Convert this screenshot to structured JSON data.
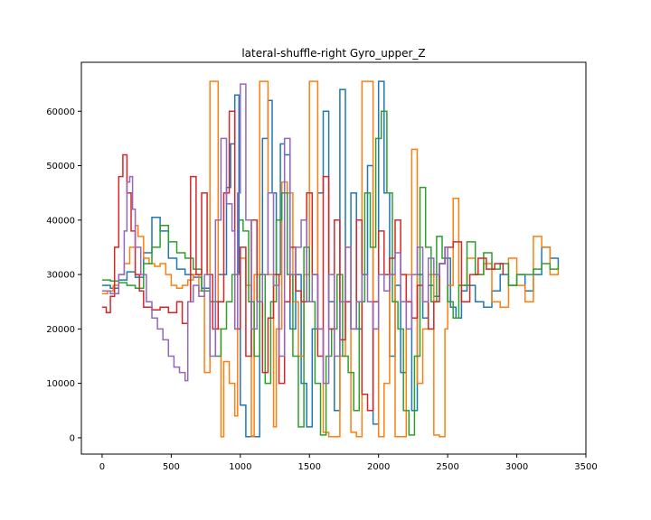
{
  "chart_data": {
    "type": "line",
    "title": "lateral-shuffle-right Gyro_upper_Z",
    "xlabel": "",
    "ylabel": "",
    "xlim": [
      -150,
      3500
    ],
    "ylim": [
      -3000,
      69000
    ],
    "xticks": [
      0,
      500,
      1000,
      1500,
      2000,
      2500,
      3000,
      3500
    ],
    "yticks": [
      0,
      10000,
      20000,
      30000,
      40000,
      50000,
      60000
    ],
    "grid": false,
    "step": true,
    "series": [
      {
        "color": "#1f77b4",
        "x": [
          0,
          60,
          120,
          180,
          240,
          300,
          360,
          420,
          480,
          540,
          600,
          660,
          720,
          780,
          840,
          900,
          930,
          960,
          990,
          1000,
          1040,
          1080,
          1100,
          1140,
          1160,
          1200,
          1230,
          1260,
          1290,
          1320,
          1360,
          1400,
          1440,
          1480,
          1520,
          1560,
          1600,
          1640,
          1680,
          1720,
          1760,
          1800,
          1840,
          1880,
          1920,
          1960,
          2000,
          2040,
          2080,
          2120,
          2160,
          2200,
          2240,
          2280,
          2320,
          2360,
          2400,
          2440,
          2480,
          2520,
          2560,
          2600,
          2640,
          2700,
          2760,
          2820,
          2880,
          2940,
          3000,
          3060,
          3120,
          3180,
          3240,
          3300
        ],
        "y": [
          28000,
          27500,
          29000,
          30500,
          29500,
          34000,
          40500,
          38000,
          33000,
          31000,
          30000,
          29500,
          27500,
          25000,
          30000,
          46000,
          54000,
          63000,
          30000,
          6000,
          200,
          300,
          200,
          30000,
          55000,
          62000,
          45000,
          30000,
          54000,
          52000,
          20000,
          30000,
          10000,
          2000,
          20000,
          45000,
          60000,
          25000,
          5000,
          64000,
          25000,
          45000,
          20000,
          30000,
          50000,
          2500,
          65500,
          45000,
          15000,
          28000,
          12000,
          25000,
          5000,
          30000,
          22000,
          28000,
          26000,
          32000,
          33000,
          24000,
          22000,
          27000,
          28000,
          25000,
          24000,
          27000,
          30000,
          28000,
          30000,
          27000,
          30000,
          35000,
          33000,
          32000
        ]
      },
      {
        "color": "#ff7f0e",
        "x": [
          0,
          40,
          80,
          120,
          160,
          200,
          240,
          260,
          300,
          340,
          380,
          420,
          460,
          500,
          540,
          580,
          620,
          660,
          700,
          740,
          780,
          800,
          840,
          860,
          880,
          920,
          960,
          980,
          1000,
          1040,
          1080,
          1100,
          1140,
          1160,
          1200,
          1240,
          1260,
          1300,
          1340,
          1380,
          1420,
          1460,
          1500,
          1540,
          1560,
          1600,
          1640,
          1680,
          1720,
          1760,
          1800,
          1840,
          1880,
          1900,
          1960,
          2000,
          2040,
          2080,
          2120,
          2160,
          2200,
          2240,
          2280,
          2320,
          2360,
          2400,
          2440,
          2480,
          2500,
          2540,
          2580,
          2640,
          2700,
          2760,
          2820,
          2880,
          2940,
          3000,
          3060,
          3120,
          3180,
          3240,
          3300
        ],
        "y": [
          26500,
          27000,
          28000,
          30000,
          32000,
          35000,
          39000,
          37000,
          33000,
          32000,
          31500,
          32000,
          30000,
          28000,
          27500,
          28000,
          29000,
          30000,
          27000,
          12000,
          65500,
          65500,
          20000,
          200,
          14000,
          10000,
          4000,
          30000,
          33000,
          28000,
          200,
          30000,
          65500,
          65500,
          30000,
          2000,
          20000,
          47000,
          45000,
          25000,
          15000,
          30000,
          65500,
          65500,
          20000,
          1000,
          200,
          200,
          15000,
          35000,
          1000,
          200,
          65500,
          65500,
          20000,
          200,
          10000,
          30000,
          200,
          200,
          30000,
          53000,
          10000,
          20000,
          30000,
          500,
          200,
          20000,
          28000,
          44000,
          28000,
          33000,
          30000,
          32000,
          25000,
          24000,
          33000,
          28000,
          25000,
          37000,
          35000,
          30000,
          32000
        ]
      },
      {
        "color": "#2ca02c",
        "x": [
          0,
          60,
          120,
          180,
          240,
          300,
          360,
          420,
          480,
          540,
          600,
          660,
          720,
          780,
          820,
          860,
          900,
          940,
          980,
          1020,
          1060,
          1100,
          1140,
          1180,
          1220,
          1260,
          1300,
          1340,
          1380,
          1420,
          1460,
          1500,
          1540,
          1580,
          1620,
          1660,
          1700,
          1740,
          1780,
          1820,
          1860,
          1900,
          1940,
          1980,
          2020,
          2060,
          2100,
          2140,
          2180,
          2220,
          2260,
          2300,
          2340,
          2380,
          2420,
          2460,
          2500,
          2540,
          2580,
          2640,
          2700,
          2760,
          2820,
          2880,
          2940,
          3000,
          3060,
          3120,
          3180,
          3240,
          3300
        ],
        "y": [
          29000,
          28800,
          28500,
          28000,
          27500,
          32000,
          35000,
          39000,
          36000,
          34000,
          33000,
          31000,
          27000,
          25000,
          15000,
          20000,
          25000,
          30000,
          40000,
          38000,
          25000,
          15000,
          30000,
          10000,
          25000,
          40000,
          45000,
          30000,
          15000,
          2000,
          35000,
          25000,
          10000,
          500,
          15000,
          20000,
          30000,
          15000,
          12000,
          5000,
          25000,
          45000,
          35000,
          55000,
          60000,
          45000,
          25000,
          20000,
          5000,
          500,
          15000,
          46000,
          35000,
          25000,
          37000,
          33000,
          25000,
          22000,
          28000,
          36000,
          30000,
          34000,
          31000,
          32000,
          28000,
          30000,
          30000,
          31000,
          32000,
          31000,
          32000
        ]
      },
      {
        "color": "#d62728",
        "x": [
          0,
          30,
          60,
          90,
          120,
          150,
          180,
          210,
          240,
          270,
          300,
          360,
          420,
          480,
          540,
          580,
          620,
          640,
          680,
          720,
          760,
          800,
          840,
          880,
          920,
          960,
          1000,
          1040,
          1080,
          1120,
          1160,
          1200,
          1240,
          1280,
          1320,
          1360,
          1400,
          1440,
          1480,
          1520,
          1560,
          1600,
          1640,
          1680,
          1720,
          1760,
          1800,
          1840,
          1880,
          1920,
          1960,
          2000,
          2040,
          2080,
          2120,
          2160,
          2200,
          2240,
          2280,
          2320,
          2360,
          2400,
          2440,
          2480,
          2540,
          2600,
          2660,
          2720,
          2780,
          2840,
          2900
        ],
        "y": [
          24000,
          23000,
          26000,
          35000,
          48000,
          52000,
          45000,
          38000,
          30000,
          27000,
          24000,
          23500,
          24000,
          23000,
          25000,
          21000,
          25000,
          48000,
          30000,
          45000,
          30000,
          20000,
          25000,
          45000,
          60000,
          20000,
          35000,
          15000,
          40000,
          25000,
          12000,
          22000,
          30000,
          10000,
          25000,
          35000,
          27000,
          25000,
          45000,
          30000,
          15000,
          48000,
          20000,
          40000,
          18000,
          25000,
          20000,
          40000,
          8000,
          5000,
          25000,
          38000,
          30000,
          33000,
          40000,
          30000,
          25000,
          22000,
          28000,
          25000,
          20000,
          25000,
          32000,
          35000,
          36000,
          25000,
          30000,
          33000,
          31000,
          32000,
          30000
        ]
      },
      {
        "color": "#9467bd",
        "x": [
          0,
          60,
          120,
          160,
          180,
          200,
          220,
          240,
          280,
          320,
          360,
          400,
          440,
          480,
          520,
          560,
          600,
          620,
          660,
          700,
          740,
          780,
          820,
          860,
          900,
          940,
          960,
          980,
          1000,
          1040,
          1080,
          1120,
          1160,
          1200,
          1240,
          1280,
          1320,
          1360,
          1400,
          1440,
          1480,
          1520,
          1560,
          1600,
          1640,
          1680,
          1720,
          1760,
          1800,
          1840,
          1880,
          1920,
          1960,
          2000,
          2040,
          2080,
          2120,
          2160,
          2200,
          2240,
          2280,
          2320,
          2360,
          2400,
          2440,
          2480,
          2500
        ],
        "y": [
          27000,
          26500,
          30000,
          38000,
          47000,
          48000,
          42000,
          35000,
          30000,
          25000,
          22000,
          20000,
          18000,
          15000,
          13000,
          12000,
          10500,
          25000,
          28000,
          26000,
          30000,
          15000,
          40000,
          55000,
          43000,
          38000,
          20000,
          45000,
          65000,
          40000,
          20000,
          25000,
          30000,
          45000,
          28000,
          15000,
          55000,
          30000,
          35000,
          40000,
          25000,
          30000,
          20000,
          10000,
          30000,
          15000,
          25000,
          35000,
          20000,
          25000,
          30000,
          25000,
          20000,
          30000,
          27000,
          30000,
          34000,
          25000,
          20000,
          30000,
          35000,
          25000,
          33000,
          30000,
          32000,
          35000,
          28000
        ]
      }
    ]
  }
}
